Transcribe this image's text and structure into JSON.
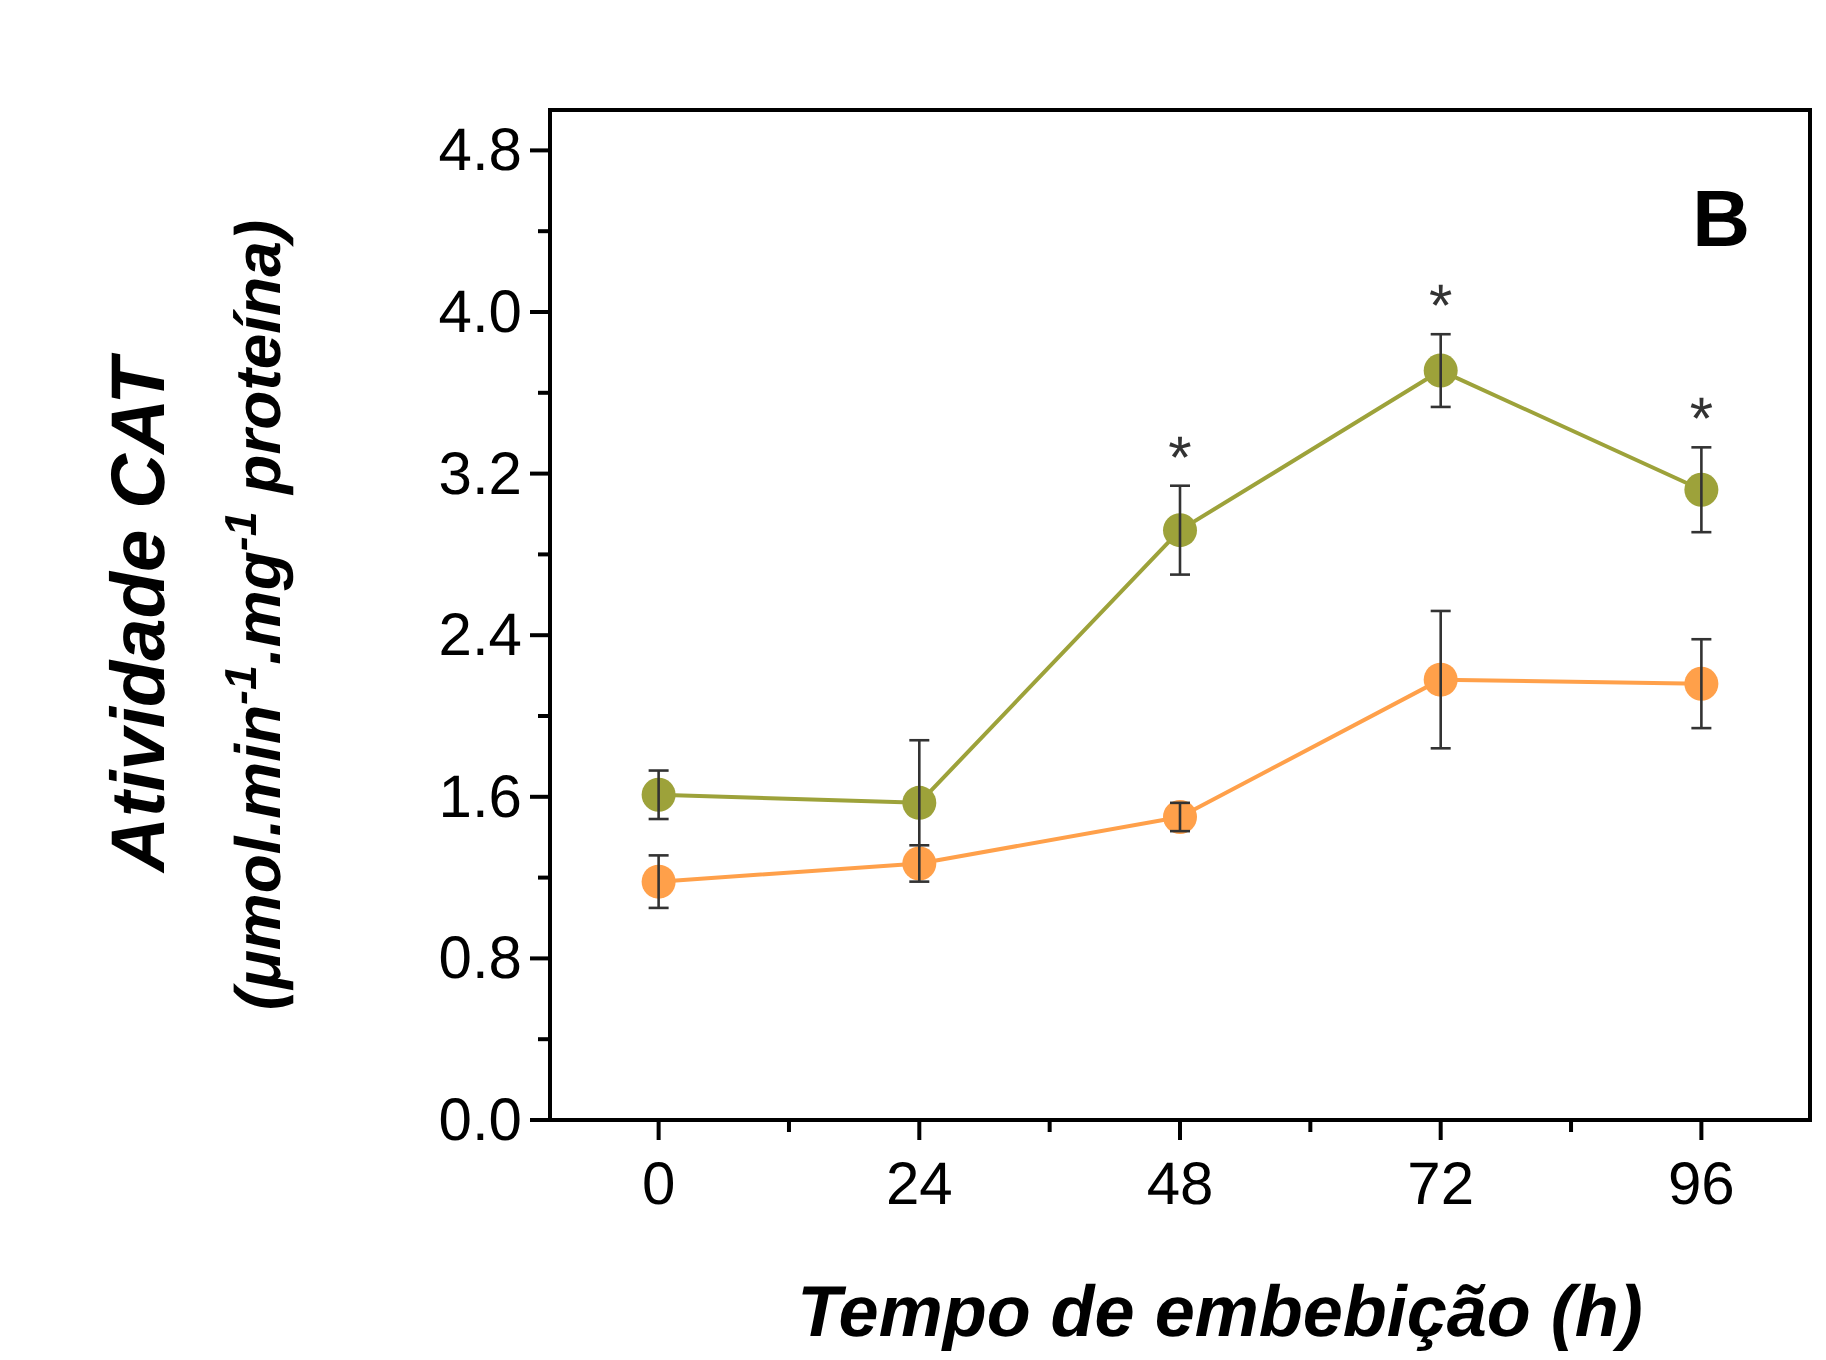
{
  "chart_data": {
    "type": "line",
    "xlabel": "Tempo de embebição (h)",
    "ylabel": "Atividade CAT\n(μmol.min$^{-1}$.mg$^{-1}$ proteína)",
    "x": [
      0,
      24,
      48,
      72,
      96
    ],
    "series": [
      {
        "color": "#9da23a",
        "values": [
          1.61,
          1.57,
          2.92,
          3.71,
          3.12
        ],
        "errors": [
          0.12,
          0.31,
          0.22,
          0.18,
          0.21
        ]
      },
      {
        "color": "#ffa04a",
        "values": [
          1.18,
          1.27,
          1.5,
          2.18,
          2.16
        ],
        "errors": [
          0.13,
          0.09,
          0.07,
          0.34,
          0.22
        ]
      }
    ],
    "xlim": [
      -10,
      106
    ],
    "xticks": [
      0,
      {
        "value": 12,
        "label": null
      },
      24,
      {
        "value": 36,
        "label": null
      },
      48,
      {
        "value": 60,
        "label": null
      },
      72,
      {
        "value": 84,
        "label": null
      },
      96
    ],
    "ylim": [
      0,
      5
    ],
    "yticks": [
      {
        "value": 0,
        "label": "0.0"
      },
      {
        "value": 0.4,
        "label": null
      },
      {
        "value": 0.8,
        "label": "0.8"
      },
      {
        "value": 1.2,
        "label": null
      },
      {
        "value": 1.6,
        "label": "1.6"
      },
      {
        "value": 2,
        "label": null
      },
      {
        "value": 2.4,
        "label": "2.4"
      },
      {
        "value": 2.8,
        "label": null
      },
      {
        "value": 3.2,
        "label": "3.2"
      },
      {
        "value": 3.6,
        "label": null
      },
      {
        "value": 4,
        "label": "4.0"
      },
      {
        "value": 4.4,
        "label": null
      },
      {
        "value": 4.8,
        "label": "4.8"
      }
    ],
    "annotations": [
      "B",
      "*",
      "*",
      "*"
    ],
    "marker": "circle",
    "line_style": "solid",
    "grid": false
  }
}
